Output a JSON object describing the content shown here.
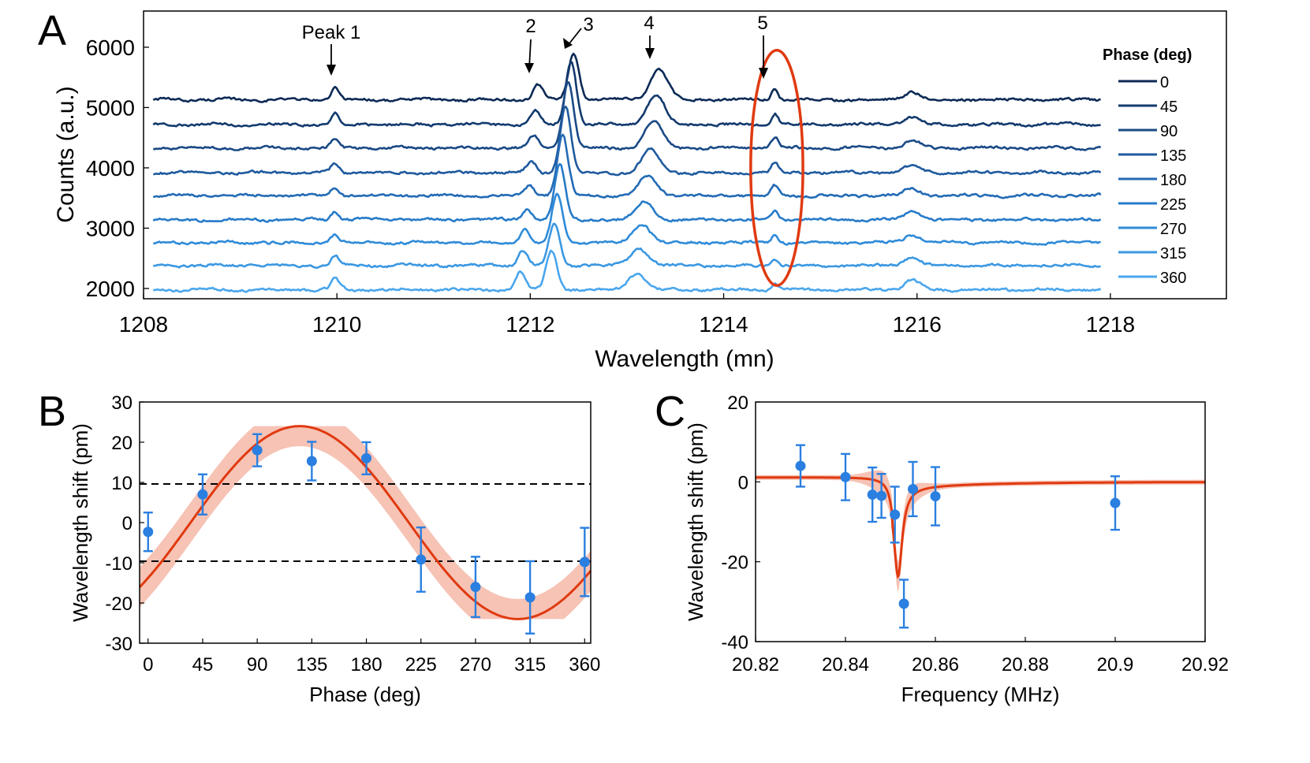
{
  "chart_data": [
    {
      "id": "A",
      "type": "line",
      "panel_label": "A",
      "xlabel": "Wavelength (mn)",
      "ylabel": "Counts (a.u.)",
      "xlim": [
        1208,
        1219.2
      ],
      "ylim": [
        1830,
        6600
      ],
      "xticks": [
        "1208",
        "1210",
        "1212",
        "1214",
        "1216",
        "1218"
      ],
      "yticks": [
        "2000",
        "3000",
        "4000",
        "5000",
        "6000"
      ],
      "legend_title": "Phase (deg)",
      "legend_position": "right",
      "x_start": 1208.1,
      "x_end": 1217.9,
      "series": [
        {
          "name": "0",
          "baseline": 5130,
          "color": "#0d2a56"
        },
        {
          "name": "45",
          "baseline": 4720,
          "color": "#133a6e"
        },
        {
          "name": "90",
          "baseline": 4330,
          "color": "#1a4a86"
        },
        {
          "name": "135",
          "baseline": 3920,
          "color": "#1f5a9e"
        },
        {
          "name": "180",
          "baseline": 3540,
          "color": "#236bb5"
        },
        {
          "name": "225",
          "baseline": 3140,
          "color": "#277bc8"
        },
        {
          "name": "270",
          "baseline": 2760,
          "color": "#2f8bd8"
        },
        {
          "name": "315",
          "baseline": 2380,
          "color": "#3b98e2"
        },
        {
          "name": "360",
          "baseline": 1980,
          "color": "#4aa6ec"
        }
      ],
      "peaks": [
        {
          "x": 1209.98,
          "amp": [
            200,
            180,
            160,
            150,
            140,
            140,
            150,
            160,
            180
          ],
          "width": 0.04
        },
        {
          "x_top": 1212.08,
          "x_bottom": 1211.9,
          "amp": [
            240,
            220,
            200,
            180,
            170,
            180,
            220,
            250,
            300
          ],
          "width": 0.05
        },
        {
          "x_top": 1212.45,
          "x_bottom": 1212.22,
          "amp": [
            780,
            1050,
            1100,
            1100,
            1000,
            900,
            800,
            700,
            650
          ],
          "width": 0.055
        },
        {
          "x_top": 1213.33,
          "x_bottom": 1213.1,
          "amp": [
            500,
            480,
            450,
            380,
            330,
            300,
            300,
            280,
            260
          ],
          "width": 0.09
        },
        {
          "x": 1214.53,
          "amp": [
            200,
            190,
            180,
            170,
            160,
            140,
            130,
            110,
            100
          ],
          "width": 0.035
        },
        {
          "x": 1215.95,
          "amp": [
            130,
            120,
            120,
            120,
            120,
            130,
            130,
            140,
            160
          ],
          "width": 0.08
        }
      ],
      "annotations": [
        "Peak 1",
        "2",
        "3",
        "4",
        "5"
      ],
      "highlight": {
        "x_center": 1214.55,
        "y_center": 4000,
        "x_radius": 0.27,
        "y_radius": 1950,
        "color": "#e03a10"
      }
    },
    {
      "id": "B",
      "type": "scatter",
      "panel_label": "B",
      "xlabel": "Phase (deg)",
      "ylabel": "Wavelength shift (pm)",
      "xlim": [
        -7,
        365
      ],
      "ylim": [
        -30,
        30
      ],
      "xticks": [
        "0",
        "45",
        "90",
        "135",
        "180",
        "225",
        "270",
        "315",
        "360"
      ],
      "yticks": [
        "-30",
        "-20",
        "-10",
        "0",
        "10",
        "20",
        "30"
      ],
      "points": [
        {
          "x": 0,
          "y": -2.3,
          "err": 4.8
        },
        {
          "x": 45,
          "y": 7.0,
          "err": 5.0
        },
        {
          "x": 90,
          "y": 18.0,
          "err": 4.0
        },
        {
          "x": 135,
          "y": 15.3,
          "err": 4.8
        },
        {
          "x": 180,
          "y": 16.0,
          "err": 4.0
        },
        {
          "x": 225,
          "y": -9.2,
          "err": 8.0
        },
        {
          "x": 270,
          "y": -16.0,
          "err": 7.5
        },
        {
          "x": 315,
          "y": -18.6,
          "err": 9.0
        },
        {
          "x": 360,
          "y": -9.8,
          "err": 8.5
        }
      ],
      "fit": {
        "amplitude": 24,
        "phase_peak_deg": 125,
        "band": 5
      },
      "thresholds": [
        9.6,
        -9.6
      ],
      "point_color": "#2a7fe0",
      "fit_color": "#e03a10",
      "band_color": "#f4b8a8"
    },
    {
      "id": "C",
      "type": "scatter",
      "panel_label": "C",
      "xlabel": "Frequency (MHz)",
      "ylabel": "Wavelength shift (pm)",
      "xlim": [
        20.82,
        20.92
      ],
      "ylim": [
        -40,
        20
      ],
      "xticks": [
        "20.82",
        "20.84",
        "20.86",
        "20.88",
        "20.9",
        "20.92"
      ],
      "yticks": [
        "-40",
        "-20",
        "0",
        "20"
      ],
      "points": [
        {
          "x": 20.83,
          "y": 4.0,
          "err": 5.2
        },
        {
          "x": 20.84,
          "y": 1.2,
          "err": 5.8
        },
        {
          "x": 20.846,
          "y": -3.2,
          "err": 6.8
        },
        {
          "x": 20.848,
          "y": -3.5,
          "err": 5.5
        },
        {
          "x": 20.851,
          "y": -8.2,
          "err": 7.0
        },
        {
          "x": 20.853,
          "y": -30.5,
          "err": 6.0
        },
        {
          "x": 20.855,
          "y": -1.8,
          "err": 6.8
        },
        {
          "x": 20.86,
          "y": -3.6,
          "err": 7.3
        },
        {
          "x": 20.9,
          "y": -5.3,
          "err": 6.7
        }
      ],
      "fit": {
        "f0": 20.8505,
        "gamma": 0.0014,
        "amp": 11.5
      },
      "point_color": "#2a7fe0",
      "fit_color": "#e03a10",
      "band_color": "#f4b8a8"
    }
  ]
}
